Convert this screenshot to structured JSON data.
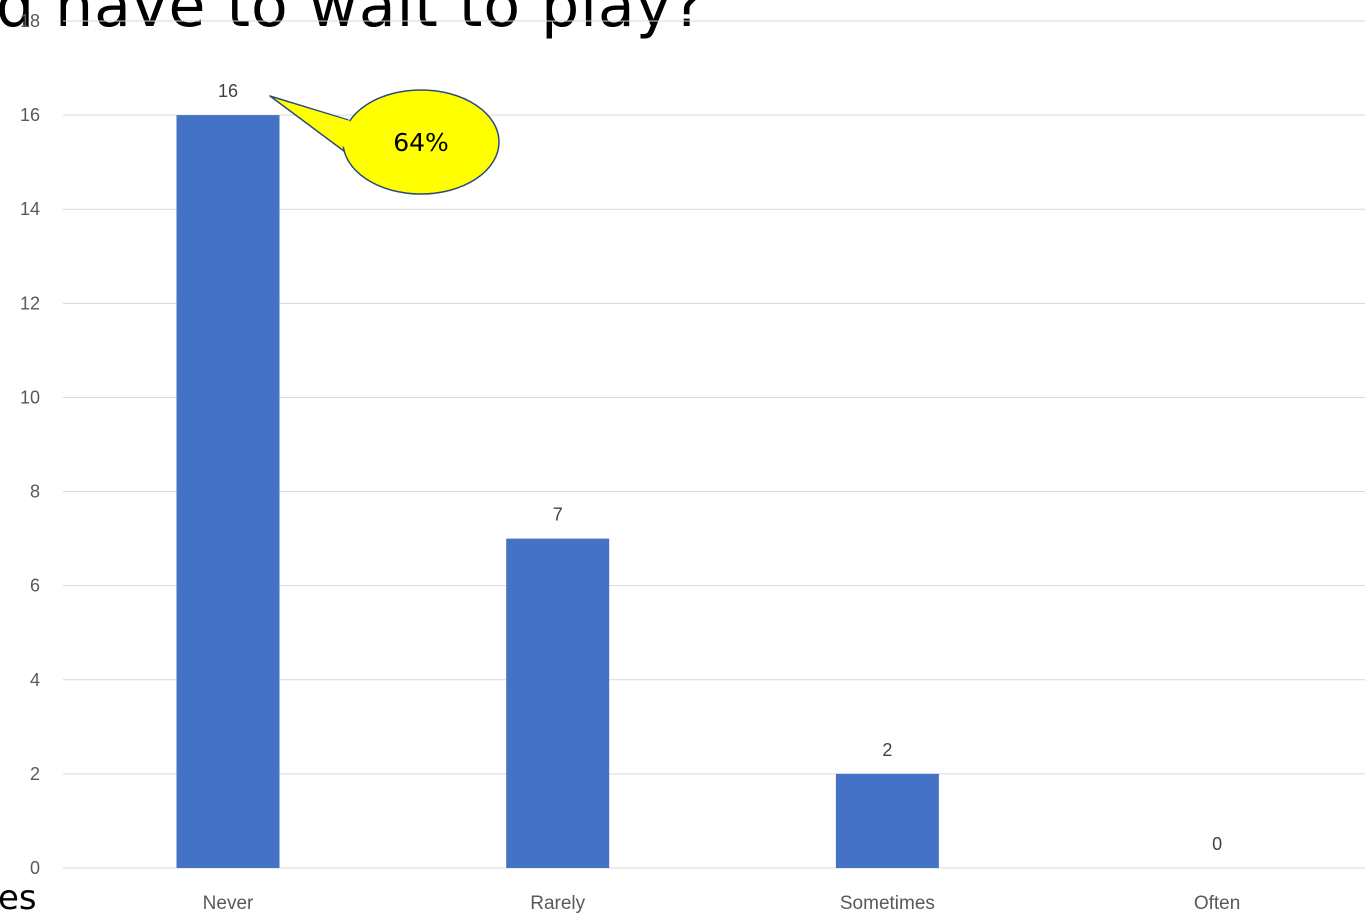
{
  "slide": {
    "title": "d have to wait to play?",
    "fragment": "es"
  },
  "chart_data": {
    "type": "bar",
    "categories": [
      "Never",
      "Rarely",
      "Sometimes",
      "Often"
    ],
    "values": [
      16,
      7,
      2,
      0
    ],
    "data_labels": [
      "16",
      "7",
      "2",
      "0"
    ],
    "title": "",
    "xlabel": "",
    "ylabel": "",
    "ylim": [
      0,
      18
    ],
    "yticks": [
      "0",
      "2",
      "4",
      "6",
      "8",
      "10",
      "12",
      "14",
      "16",
      "18"
    ],
    "grid": true,
    "bar_color": "#4472c4",
    "grid_color": "#d9d9d9",
    "tick_label_color": "#595959"
  },
  "callout": {
    "text": "64%",
    "fill_color": "#ffff00",
    "target_category": "Never"
  }
}
